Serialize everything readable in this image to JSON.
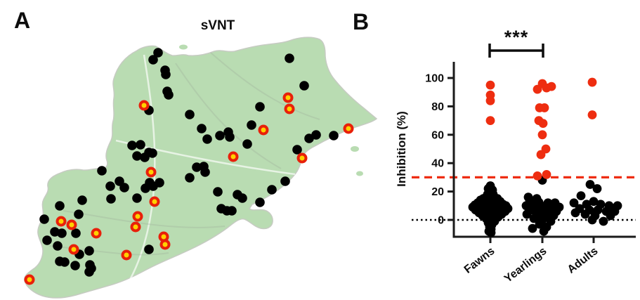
{
  "figure": {
    "panel_a": {
      "label": "A",
      "title": "sVNT"
    },
    "panel_b": {
      "label": "B"
    }
  },
  "map": {
    "land_color": "#b9dcb2",
    "land_stroke": "#c6cbc2",
    "negative_dot_color": "#000000",
    "positive_dot_fill": "#ffd100",
    "positive_dot_stroke": "#e8200a",
    "negative_dots": [
      [
        225,
        75
      ],
      [
        218,
        85
      ],
      [
        235,
        100
      ],
      [
        236,
        106
      ],
      [
        238,
        130
      ],
      [
        212,
        157
      ],
      [
        240,
        135
      ],
      [
        270,
        163
      ],
      [
        287,
        183
      ],
      [
        295,
        198
      ],
      [
        313,
        193
      ],
      [
        325,
        188
      ],
      [
        327,
        195
      ],
      [
        370,
        152
      ],
      [
        358,
        178
      ],
      [
        352,
        205
      ],
      [
        412,
        83
      ],
      [
        433,
        122
      ],
      [
        440,
        197
      ],
      [
        450,
        192
      ],
      [
        475,
        193
      ],
      [
        423,
        213
      ],
      [
        406,
        258
      ],
      [
        387,
        270
      ],
      [
        370,
        288
      ],
      [
        345,
        282
      ],
      [
        338,
        277
      ],
      [
        310,
        273
      ],
      [
        315,
        297
      ],
      [
        323,
        300
      ],
      [
        330,
        300
      ],
      [
        280,
        238
      ],
      [
        290,
        237
      ],
      [
        292,
        245
      ],
      [
        270,
        253
      ],
      [
        188,
        207
      ],
      [
        200,
        206
      ],
      [
        212,
        217
      ],
      [
        195,
        222
      ],
      [
        206,
        224
      ],
      [
        217,
        218
      ],
      [
        213,
        260
      ],
      [
        227,
        260
      ],
      [
        218,
        265
      ],
      [
        207,
        268
      ],
      [
        195,
        282
      ],
      [
        145,
        243
      ],
      [
        170,
        258
      ],
      [
        157,
        265
      ],
      [
        177,
        267
      ],
      [
        117,
        285
      ],
      [
        158,
        283
      ],
      [
        85,
        293
      ],
      [
        63,
        312
      ],
      [
        112,
        305
      ],
      [
        78,
        330
      ],
      [
        88,
        332
      ],
      [
        108,
        332
      ],
      [
        67,
        342
      ],
      [
        82,
        350
      ],
      [
        127,
        357
      ],
      [
        113,
        362
      ],
      [
        85,
        372
      ],
      [
        92,
        373
      ],
      [
        107,
        378
      ],
      [
        128,
        377
      ],
      [
        130,
        382
      ],
      [
        127,
        387
      ],
      [
        212,
        355
      ]
    ],
    "positive_dots": [
      [
        205,
        150
      ],
      [
        410,
        139
      ],
      [
        412,
        155
      ],
      [
        375,
        185
      ],
      [
        496,
        183
      ],
      [
        430,
        225
      ],
      [
        332,
        223
      ],
      [
        215,
        245
      ],
      [
        220,
        287
      ],
      [
        196,
        308
      ],
      [
        193,
        323
      ],
      [
        233,
        337
      ],
      [
        235,
        348
      ],
      [
        180,
        363
      ],
      [
        137,
        332
      ],
      [
        87,
        315
      ],
      [
        102,
        320
      ],
      [
        105,
        355
      ],
      [
        42,
        398
      ]
    ]
  },
  "chart_data": {
    "type": "scatter",
    "ylabel": "Inhibition (%)",
    "yticks": [
      0,
      20,
      40,
      60,
      80,
      100
    ],
    "ylim": [
      -12,
      110
    ],
    "categories": [
      "Fawns",
      "Yearlings",
      "Adults"
    ],
    "threshold_line": {
      "value": 30,
      "style": "dashed",
      "color": "#ee2d10"
    },
    "baseline": {
      "value": 0,
      "style": "dotted",
      "color": "#000000"
    },
    "significance": {
      "between": [
        "Fawns",
        "Yearlings"
      ],
      "label": "***"
    },
    "point_color_above_threshold": "#ee2d10",
    "point_color_below_threshold": "#000000",
    "median_lines": [
      {
        "category": "Yearlings",
        "value": 10
      }
    ],
    "series": [
      {
        "category": "Fawns",
        "points_above_threshold": [
          [
            0,
            95
          ],
          [
            0,
            88
          ],
          [
            0,
            84
          ],
          [
            0,
            70
          ]
        ],
        "points_below_threshold": [
          [
            0,
            24
          ],
          [
            -3,
            22
          ],
          [
            3,
            21
          ],
          [
            0,
            20
          ],
          [
            -4,
            18
          ],
          [
            4,
            18
          ],
          [
            -1,
            17
          ],
          [
            -6,
            16
          ],
          [
            5,
            16
          ],
          [
            -10,
            15
          ],
          [
            2,
            15
          ],
          [
            10,
            15
          ],
          [
            -14,
            14
          ],
          [
            -5,
            13.5
          ],
          [
            6,
            13
          ],
          [
            14,
            13
          ],
          [
            -18,
            12
          ],
          [
            -9,
            12
          ],
          [
            0,
            12
          ],
          [
            9,
            11.5
          ],
          [
            18,
            11
          ],
          [
            -22,
            10.5
          ],
          [
            -13,
            10
          ],
          [
            -4,
            10
          ],
          [
            5,
            10
          ],
          [
            13,
            10
          ],
          [
            22,
            10
          ],
          [
            -25,
            9
          ],
          [
            -17,
            8.5
          ],
          [
            -8,
            8
          ],
          [
            0,
            8
          ],
          [
            8,
            8
          ],
          [
            17,
            8
          ],
          [
            25,
            8
          ],
          [
            -21,
            7
          ],
          [
            -12,
            6.5
          ],
          [
            -4,
            6
          ],
          [
            4,
            6
          ],
          [
            12,
            6
          ],
          [
            21,
            6
          ],
          [
            -16,
            5
          ],
          [
            -8,
            4.5
          ],
          [
            0,
            4
          ],
          [
            8,
            4
          ],
          [
            16,
            4
          ],
          [
            -11,
            3
          ],
          [
            -3,
            2.5
          ],
          [
            5,
            2
          ],
          [
            11,
            2
          ],
          [
            -6,
            1
          ],
          [
            2,
            0.5
          ],
          [
            -1,
            -0.5
          ],
          [
            6,
            -1
          ],
          [
            -3,
            -2
          ],
          [
            2,
            -3.5
          ],
          [
            -1,
            -5
          ],
          [
            1,
            -6.5
          ],
          [
            -2,
            -8
          ],
          [
            1,
            -9
          ]
        ]
      },
      {
        "category": "Yearlings",
        "points_above_threshold": [
          [
            0,
            96
          ],
          [
            -7,
            92
          ],
          [
            6,
            93
          ],
          [
            13,
            94
          ],
          [
            -4,
            79
          ],
          [
            3,
            79
          ],
          [
            -5,
            70
          ],
          [
            1,
            68
          ],
          [
            0,
            60
          ],
          [
            5,
            50
          ],
          [
            -2,
            46
          ],
          [
            6,
            32
          ],
          [
            -7,
            31
          ]
        ],
        "points_below_threshold": [
          [
            0,
            28
          ],
          [
            -20,
            16
          ],
          [
            -8,
            15
          ],
          [
            -18,
            13
          ],
          [
            -5,
            12.5
          ],
          [
            8,
            12
          ],
          [
            18,
            12
          ],
          [
            -23,
            10
          ],
          [
            -10,
            10
          ],
          [
            2,
            9.5
          ],
          [
            14,
            9
          ],
          [
            24,
            9
          ],
          [
            -16,
            7
          ],
          [
            -4,
            6.5
          ],
          [
            8,
            6
          ],
          [
            20,
            6
          ],
          [
            -22,
            4
          ],
          [
            -8,
            3.5
          ],
          [
            4,
            3
          ],
          [
            16,
            3
          ],
          [
            -12,
            1
          ],
          [
            0,
            0
          ],
          [
            12,
            -1
          ],
          [
            -4,
            -3
          ],
          [
            6,
            -5
          ],
          [
            -14,
            -6
          ],
          [
            2,
            -8
          ]
        ]
      },
      {
        "category": "Adults",
        "points_above_threshold": [
          [
            -2,
            97
          ],
          [
            -2,
            74
          ]
        ],
        "points_below_threshold": [
          [
            -5,
            25
          ],
          [
            5,
            22
          ],
          [
            -18,
            17
          ],
          [
            0,
            13
          ],
          [
            -28,
            12
          ],
          [
            -10,
            11
          ],
          [
            10,
            11
          ],
          [
            22,
            10
          ],
          [
            34,
            10
          ],
          [
            -20,
            8
          ],
          [
            -6,
            7
          ],
          [
            6,
            7
          ],
          [
            18,
            6
          ],
          [
            30,
            6
          ],
          [
            -26,
            5
          ],
          [
            -12,
            4
          ],
          [
            2,
            3
          ],
          [
            24,
            3
          ],
          [
            -2,
            0
          ],
          [
            14,
            -1
          ]
        ]
      }
    ]
  }
}
